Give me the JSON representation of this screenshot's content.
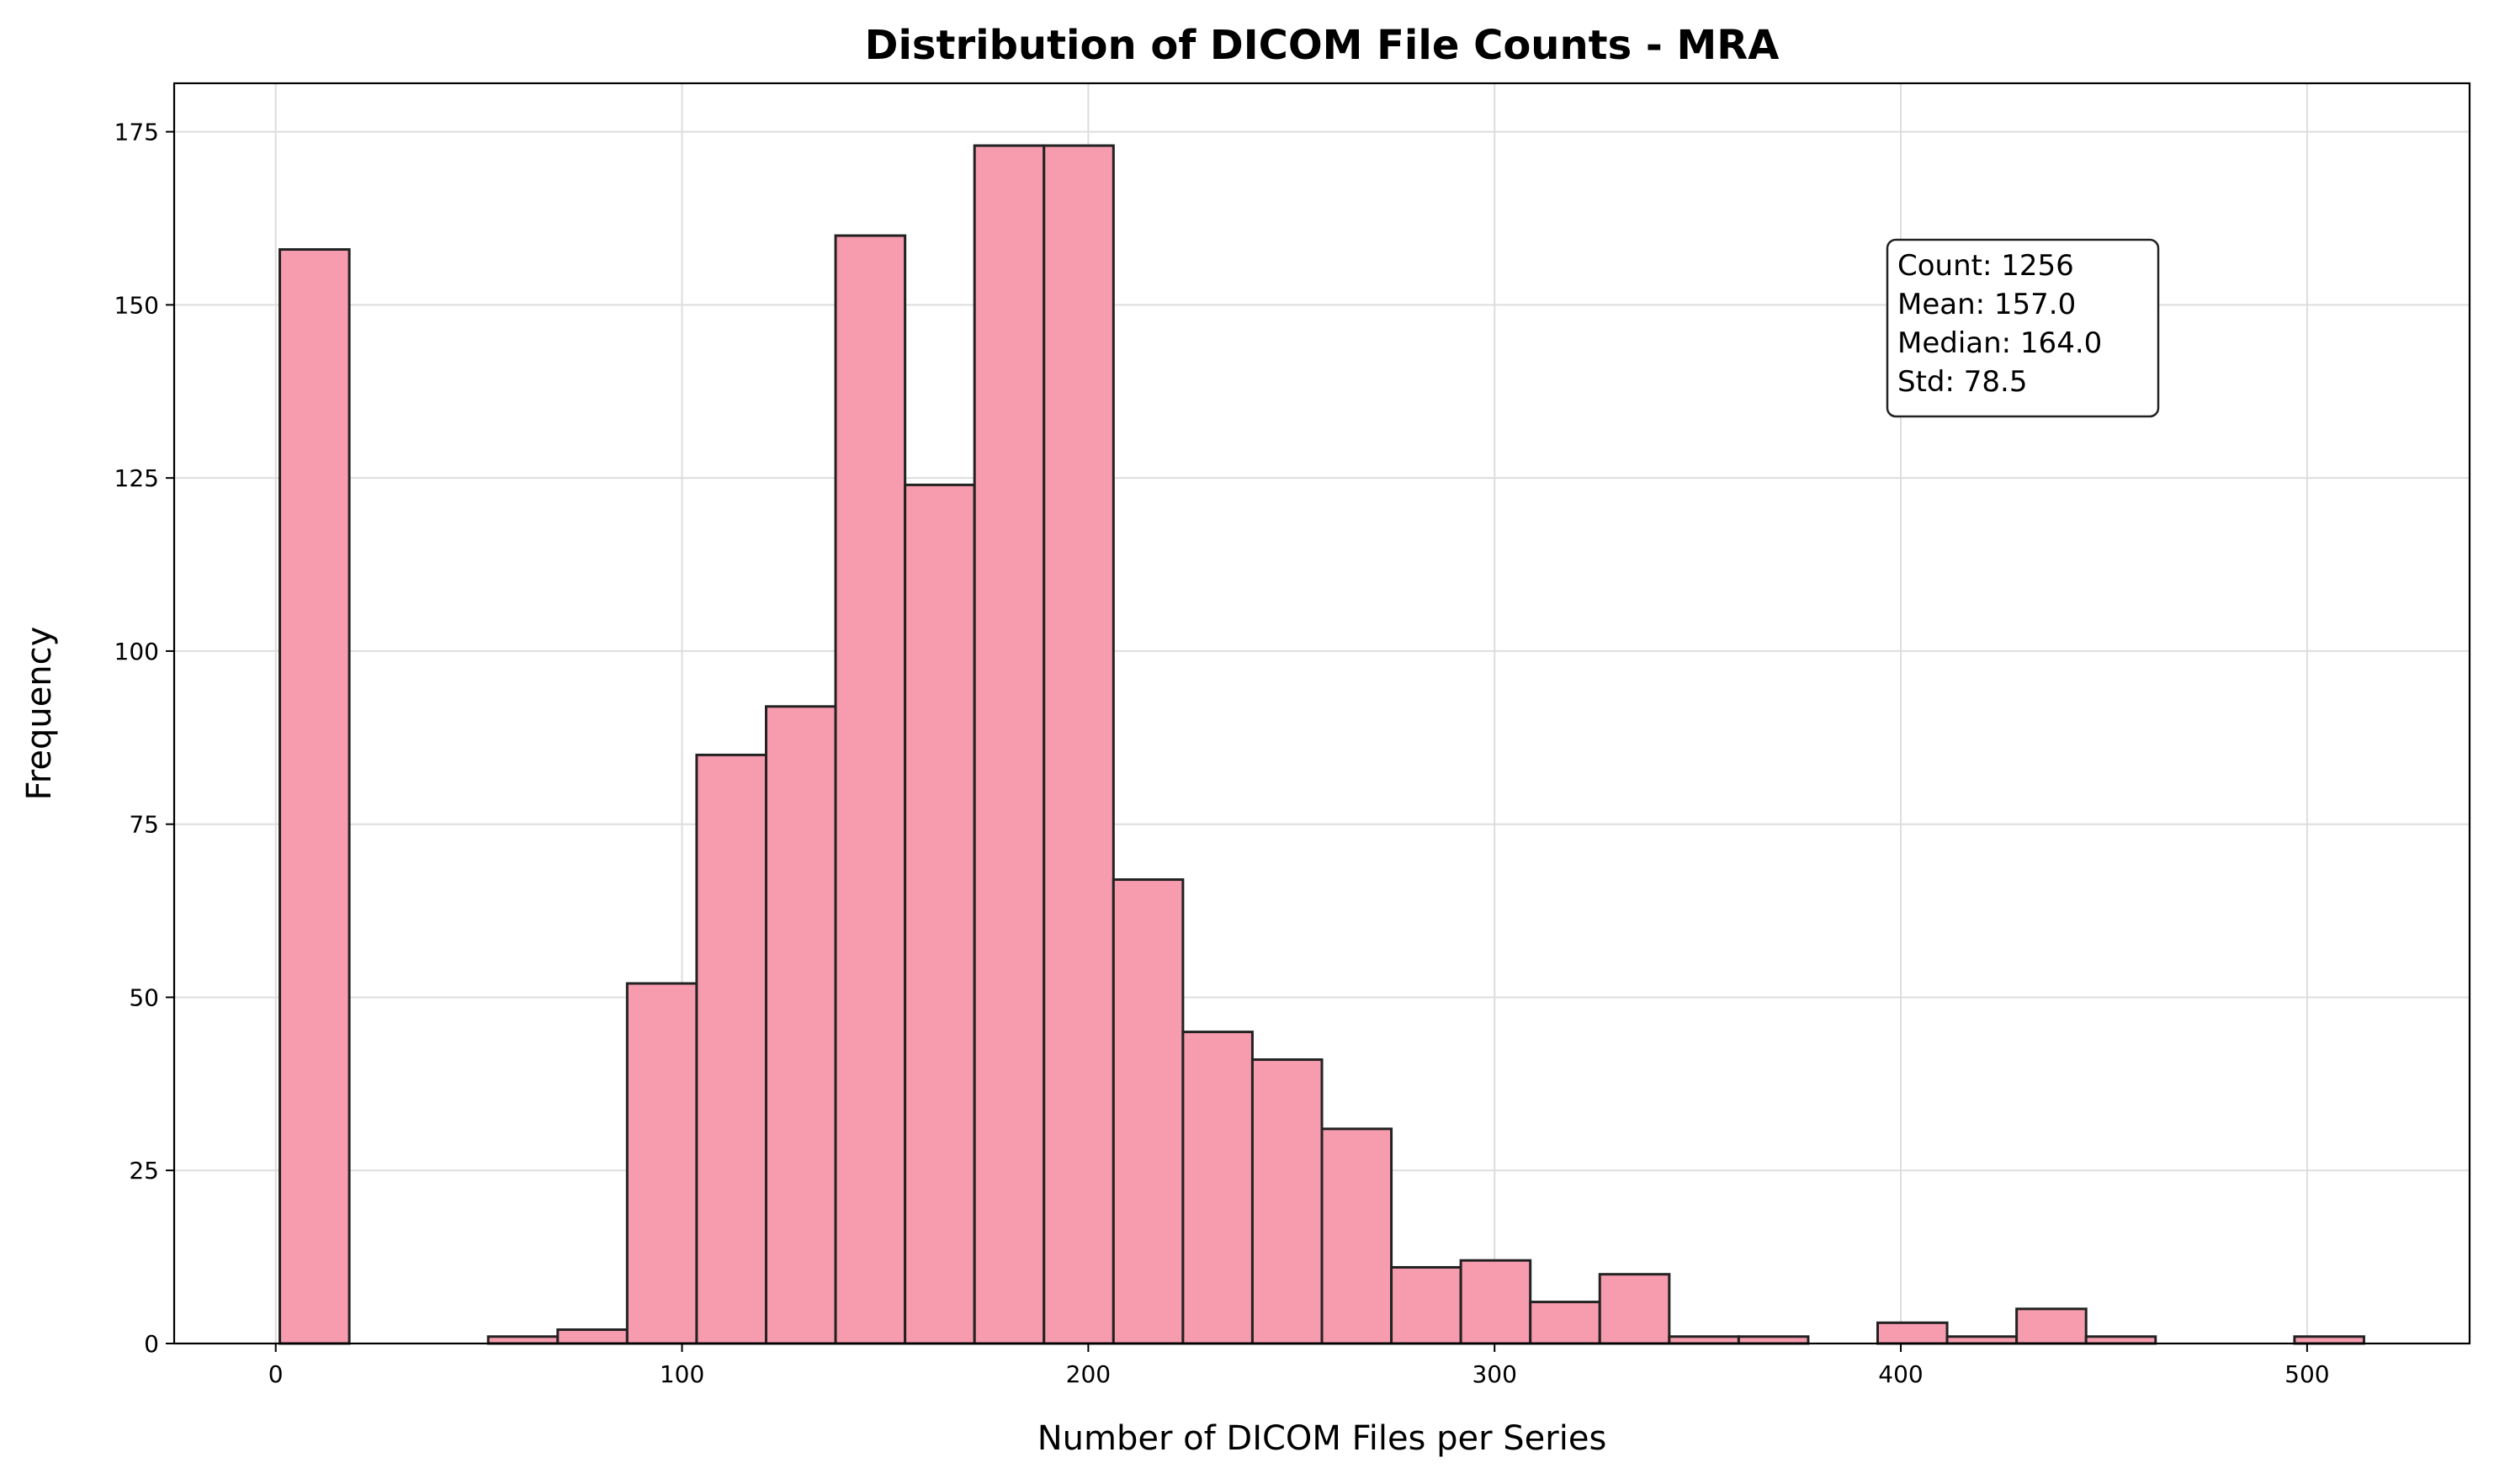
{
  "chart_data": {
    "type": "bar",
    "title": "Distribution of DICOM File Counts - MRA",
    "xlabel": "Number of DICOM Files per Series",
    "ylabel": "Frequency",
    "xlim": [
      -25,
      540
    ],
    "ylim": [
      0,
      182
    ],
    "xticks": [
      0,
      100,
      200,
      300,
      400,
      500
    ],
    "yticks": [
      0,
      25,
      50,
      75,
      100,
      125,
      150,
      175
    ],
    "grid": true,
    "bar_color": "#f79caf",
    "edge_color": "#222222",
    "bin_width": 17.1,
    "bins": [
      {
        "start": 1,
        "count": 158
      },
      {
        "start": 18.1,
        "count": 0
      },
      {
        "start": 35.2,
        "count": 0
      },
      {
        "start": 52.3,
        "count": 1
      },
      {
        "start": 69.4,
        "count": 2
      },
      {
        "start": 86.5,
        "count": 52
      },
      {
        "start": 103.6,
        "count": 85
      },
      {
        "start": 120.7,
        "count": 92
      },
      {
        "start": 137.8,
        "count": 160
      },
      {
        "start": 154.9,
        "count": 124
      },
      {
        "start": 172.0,
        "count": 173
      },
      {
        "start": 189.1,
        "count": 173
      },
      {
        "start": 206.2,
        "count": 67
      },
      {
        "start": 223.3,
        "count": 45
      },
      {
        "start": 240.4,
        "count": 41
      },
      {
        "start": 257.5,
        "count": 31
      },
      {
        "start": 274.6,
        "count": 11
      },
      {
        "start": 291.7,
        "count": 12
      },
      {
        "start": 308.8,
        "count": 6
      },
      {
        "start": 325.9,
        "count": 10
      },
      {
        "start": 343.0,
        "count": 1
      },
      {
        "start": 360.1,
        "count": 1
      },
      {
        "start": 377.2,
        "count": 0
      },
      {
        "start": 394.3,
        "count": 3
      },
      {
        "start": 411.4,
        "count": 1
      },
      {
        "start": 428.5,
        "count": 5
      },
      {
        "start": 445.6,
        "count": 1
      },
      {
        "start": 462.7,
        "count": 0
      },
      {
        "start": 479.8,
        "count": 0
      },
      {
        "start": 496.9,
        "count": 1
      }
    ],
    "annotation": {
      "lines": [
        "Count: 1256",
        "Mean: 157.0",
        "Median: 164.0",
        "Std: 78.5"
      ]
    }
  }
}
